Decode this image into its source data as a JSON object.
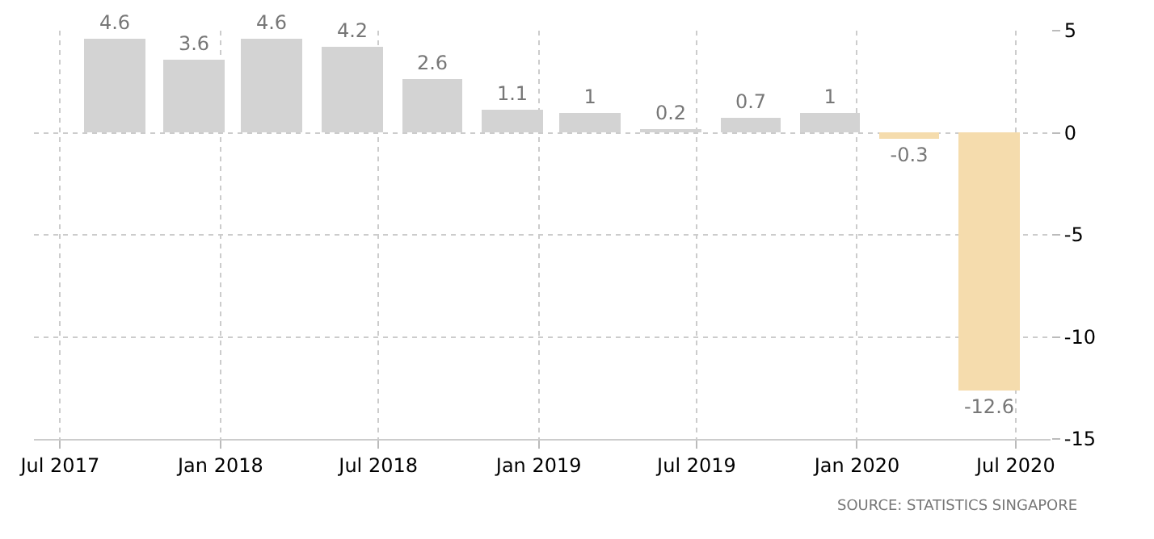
{
  "chart_data": {
    "type": "bar",
    "x": [
      "2017-09",
      "2017-12",
      "2018-03",
      "2018-06",
      "2018-09",
      "2018-12",
      "2019-03",
      "2019-06",
      "2019-09",
      "2019-12",
      "2020-03",
      "2020-06"
    ],
    "values": [
      4.6,
      3.6,
      4.6,
      4.2,
      2.6,
      1.1,
      1,
      0.2,
      0.7,
      1,
      -0.3,
      -12.6
    ],
    "colors": [
      "#d3d3d3",
      "#d3d3d3",
      "#d3d3d3",
      "#d3d3d3",
      "#d3d3d3",
      "#d3d3d3",
      "#d3d3d3",
      "#d3d3d3",
      "#d3d3d3",
      "#d3d3d3",
      "#f5dcad",
      "#f5dcad"
    ],
    "data_labels": true,
    "ylim": [
      -15,
      5
    ],
    "yticks": [
      -15,
      -10,
      -5,
      0,
      5
    ],
    "xlim": [
      "2017-06-01",
      "2020-08-10"
    ],
    "xticks": [
      {
        "value": "2017-07",
        "label": "Jul 2017"
      },
      {
        "value": "2018-01",
        "label": "Jan 2018"
      },
      {
        "value": "2018-07",
        "label": "Jul 2018"
      },
      {
        "value": "2019-01",
        "label": "Jan 2019"
      },
      {
        "value": "2019-07",
        "label": "Jul 2019"
      },
      {
        "value": "2020-01",
        "label": "Jan 2020"
      },
      {
        "value": "2020-07",
        "label": "Jul 2020"
      }
    ],
    "grid": true,
    "legend": false,
    "annotations": [
      "SOURCE: STATISTICS SINGAPORE"
    ]
  }
}
